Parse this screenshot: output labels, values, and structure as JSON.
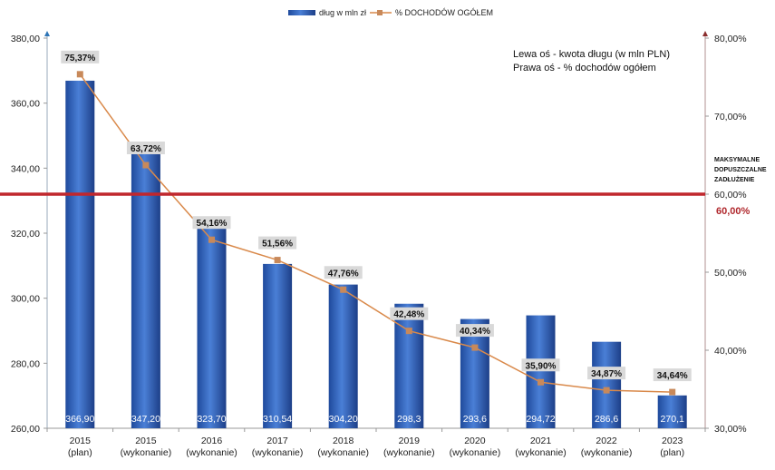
{
  "chart_data": {
    "type": "bar+line",
    "categories": [
      [
        "2015",
        "(plan)"
      ],
      [
        "2015",
        "(wykonanie)"
      ],
      [
        "2016",
        "(wykonanie)"
      ],
      [
        "2017",
        "(wykonanie)"
      ],
      [
        "2018",
        "(wykonanie)"
      ],
      [
        "2019",
        "(wykonanie)"
      ],
      [
        "2020",
        "(wykonanie)"
      ],
      [
        "2021",
        "(wykonanie)"
      ],
      [
        "2022",
        "(wykonanie)"
      ],
      [
        "2023",
        "(plan)"
      ]
    ],
    "series": [
      {
        "name": "dług w mln zł",
        "type": "bar",
        "axis": "left",
        "color": "#2f5fb8",
        "values": [
          366.9,
          347.2,
          323.7,
          310.54,
          304.2,
          298.3,
          293.6,
          294.72,
          286.6,
          270.1
        ],
        "labels": [
          "366,90",
          "347,20",
          "323,70",
          "310,54",
          "304,20",
          "298,3",
          "293,6",
          "294,72",
          "286,6",
          "270,1"
        ]
      },
      {
        "name": "% DOCHODÓW OGÓŁEM",
        "type": "line",
        "axis": "right",
        "color": "#d9894a",
        "values": [
          75.37,
          63.72,
          54.16,
          51.56,
          47.76,
          42.48,
          40.34,
          35.9,
          34.87,
          34.64
        ],
        "labels": [
          "75,37%",
          "63,72%",
          "54,16%",
          "51,56%",
          "47,76%",
          "42,48%",
          "40,34%",
          "35,90%",
          "34,87%",
          "34,64%"
        ]
      }
    ],
    "left_axis": {
      "range": [
        260,
        380
      ],
      "ticks": [
        "260,00",
        "280,00",
        "300,00",
        "320,00",
        "340,00",
        "360,00",
        "380,00"
      ]
    },
    "right_axis": {
      "range": [
        30,
        80
      ],
      "ticks": [
        "30,00%",
        "40,00%",
        "50,00%",
        "60,00%",
        "70,00%",
        "80,00%"
      ]
    },
    "legend_position": "top",
    "annotation": {
      "line1": "Lewa oś - kwota długu (w mln PLN)",
      "line2": "Prawa oś - % dochodów ogółem"
    },
    "threshold": {
      "value": 60,
      "color": "#c0272d",
      "label_lines": [
        "MAKSYMALNE",
        "DOPUSZCZALNE",
        "ZADŁUŻENIE"
      ],
      "value_label": "60,00%"
    }
  }
}
